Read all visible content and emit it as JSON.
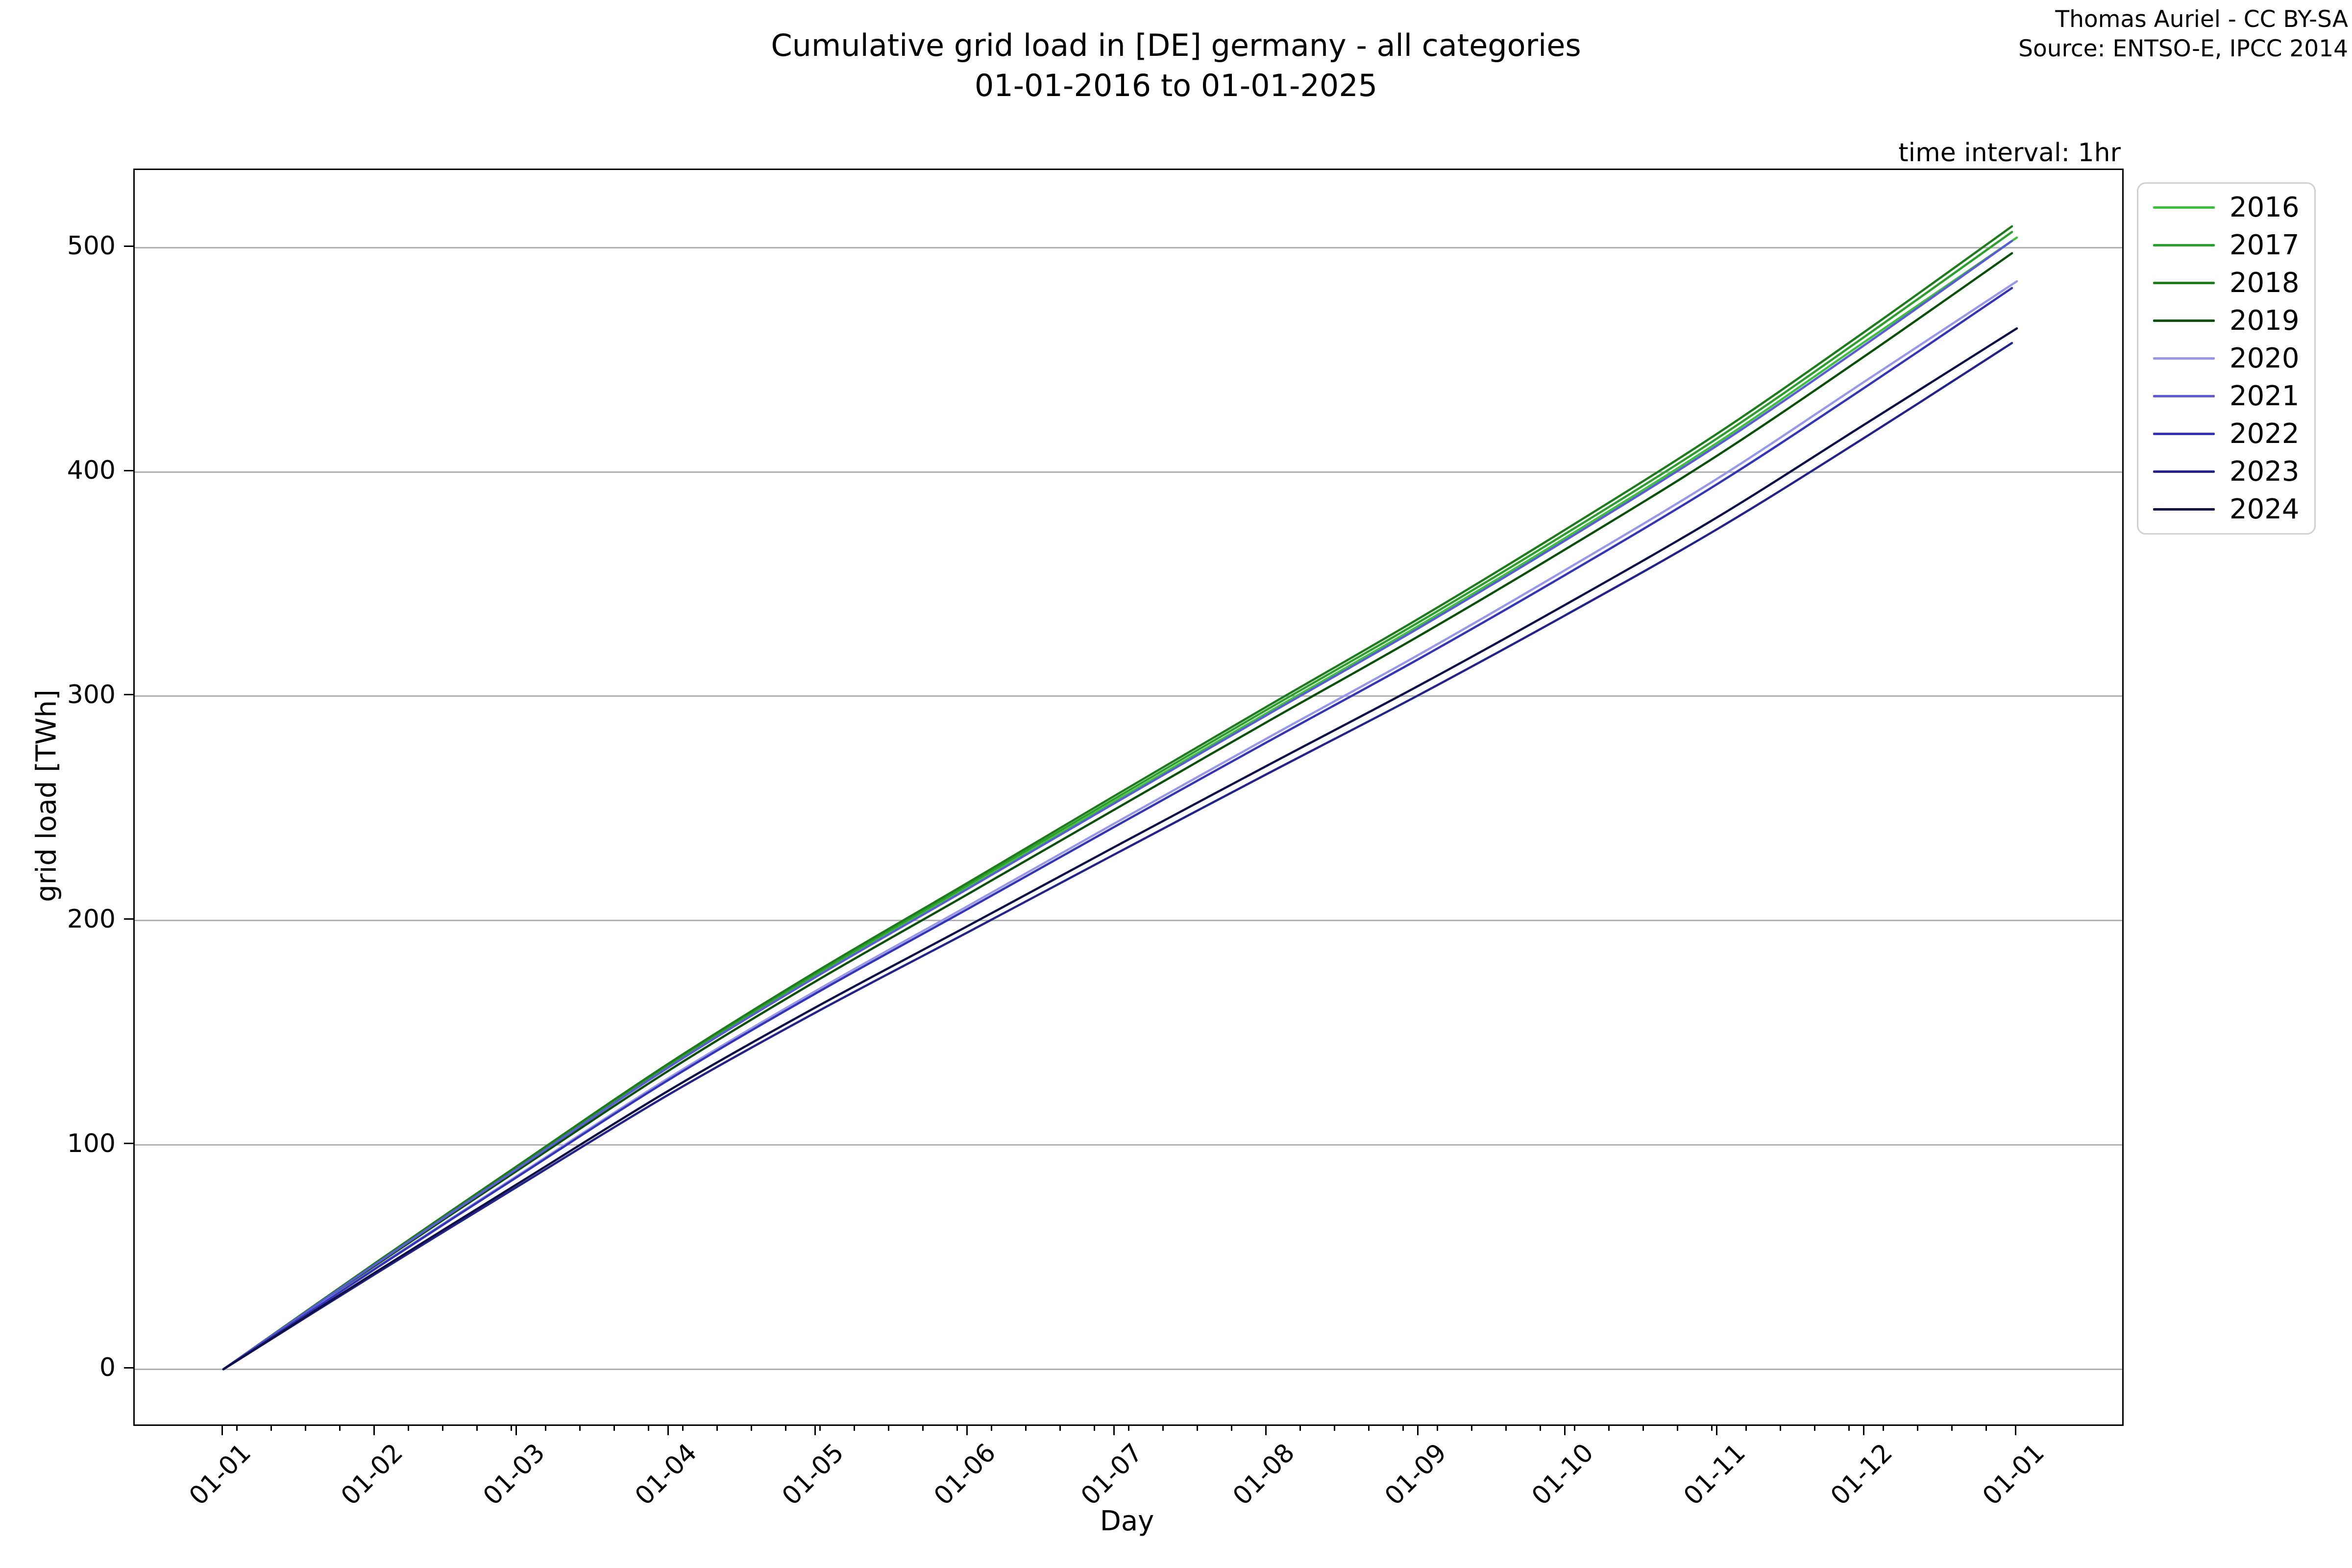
{
  "header": {
    "title_line1": "Cumulative grid load in [DE] germany - all categories",
    "title_line2": "01-01-2016 to 01-01-2025",
    "attribution_line1": "Thomas Auriel - CC BY-SA",
    "attribution_line2": "Source: ENTSO-E, IPCC 2014",
    "time_interval_note": "time interval: 1hr"
  },
  "chart_data": {
    "type": "line",
    "title": "Cumulative grid load in [DE] germany - all categories 01-01-2016 to 01-01-2025",
    "xlabel": "Day",
    "ylabel": "grid load [TWh]",
    "grid": "horizontal",
    "legend_position": "outside upper right",
    "y_ticks": [
      0,
      100,
      200,
      300,
      400,
      500
    ],
    "ylim": [
      -24.6,
      534.6
    ],
    "xlim_days": [
      -18.1,
      387.5
    ],
    "x_tick_labels": [
      "01-01",
      "01-02",
      "01-03",
      "01-04",
      "01-05",
      "01-06",
      "01-07",
      "01-08",
      "01-09",
      "01-10",
      "01-11",
      "01-12",
      "01-01"
    ],
    "x_tick_days": [
      0,
      31,
      60,
      91,
      121,
      152,
      182,
      213,
      244,
      274,
      305,
      335,
      366
    ],
    "month_start_days": [
      0,
      31,
      60,
      91,
      121,
      152,
      182,
      213,
      244,
      274,
      305,
      335
    ],
    "series": [
      {
        "name": "2016",
        "color": "#3fbf3f",
        "end_day": 366,
        "annual_total_twh": 504.5,
        "cumulative_monthly_twh": [
          0,
          46.9,
          89.8,
          135.2,
          175.6,
          214.9,
          253.3,
          292.6,
          331.5,
          370.8,
          413.2,
          458.1,
          504.5
        ]
      },
      {
        "name": "2017",
        "color": "#2d9f2d",
        "end_day": 365,
        "annual_total_twh": 507.0,
        "cumulative_monthly_twh": [
          0,
          47.2,
          90.2,
          135.9,
          176.4,
          216.0,
          254.5,
          294.1,
          333.1,
          372.6,
          415.2,
          460.4,
          507.0
        ]
      },
      {
        "name": "2018",
        "color": "#1d7d1d",
        "end_day": 365,
        "annual_total_twh": 509.5,
        "cumulative_monthly_twh": [
          0,
          47.4,
          90.7,
          136.5,
          177.3,
          217.0,
          255.8,
          295.5,
          334.7,
          374.5,
          417.3,
          462.6,
          509.5
        ]
      },
      {
        "name": "2019",
        "color": "#0a4f0a",
        "end_day": 365,
        "annual_total_twh": 497.5,
        "cumulative_monthly_twh": [
          0,
          46.3,
          88.6,
          133.3,
          173.1,
          211.9,
          249.7,
          288.6,
          326.9,
          365.7,
          407.5,
          451.7,
          497.5
        ]
      },
      {
        "name": "2020",
        "color": "#9898e8",
        "end_day": 366,
        "annual_total_twh": 485.0,
        "cumulative_monthly_twh": [
          0,
          45.1,
          86.3,
          130.0,
          168.8,
          206.6,
          243.5,
          281.3,
          318.6,
          356.5,
          397.2,
          440.4,
          485.0
        ]
      },
      {
        "name": "2021",
        "color": "#5b5bd6",
        "end_day": 365,
        "annual_total_twh": 503.0,
        "cumulative_monthly_twh": [
          0,
          46.8,
          89.5,
          134.8,
          175.0,
          214.3,
          252.5,
          291.7,
          330.5,
          369.7,
          412.0,
          456.7,
          503.0
        ]
      },
      {
        "name": "2022",
        "color": "#3434b8",
        "end_day": 365,
        "annual_total_twh": 482.0,
        "cumulative_monthly_twh": [
          0,
          44.8,
          85.8,
          129.2,
          167.7,
          205.3,
          242.0,
          279.6,
          316.7,
          354.3,
          394.8,
          437.7,
          482.0
        ]
      },
      {
        "name": "2023",
        "color": "#23238a",
        "end_day": 365,
        "annual_total_twh": 457.5,
        "cumulative_monthly_twh": [
          0,
          42.5,
          81.4,
          122.6,
          159.2,
          194.9,
          229.7,
          265.4,
          300.6,
          336.3,
          374.7,
          415.4,
          457.5
        ]
      },
      {
        "name": "2024",
        "color": "#0f0f48",
        "end_day": 366,
        "annual_total_twh": 464.0,
        "cumulative_monthly_twh": [
          0,
          43.2,
          82.6,
          124.4,
          161.5,
          197.7,
          233.0,
          269.1,
          304.8,
          341.0,
          380.0,
          421.3,
          464.0
        ]
      }
    ]
  },
  "colors": {
    "grid": "#b0b0b0",
    "spine": "#000000",
    "legend_border": "#d0d0d0",
    "text": "#000000"
  }
}
